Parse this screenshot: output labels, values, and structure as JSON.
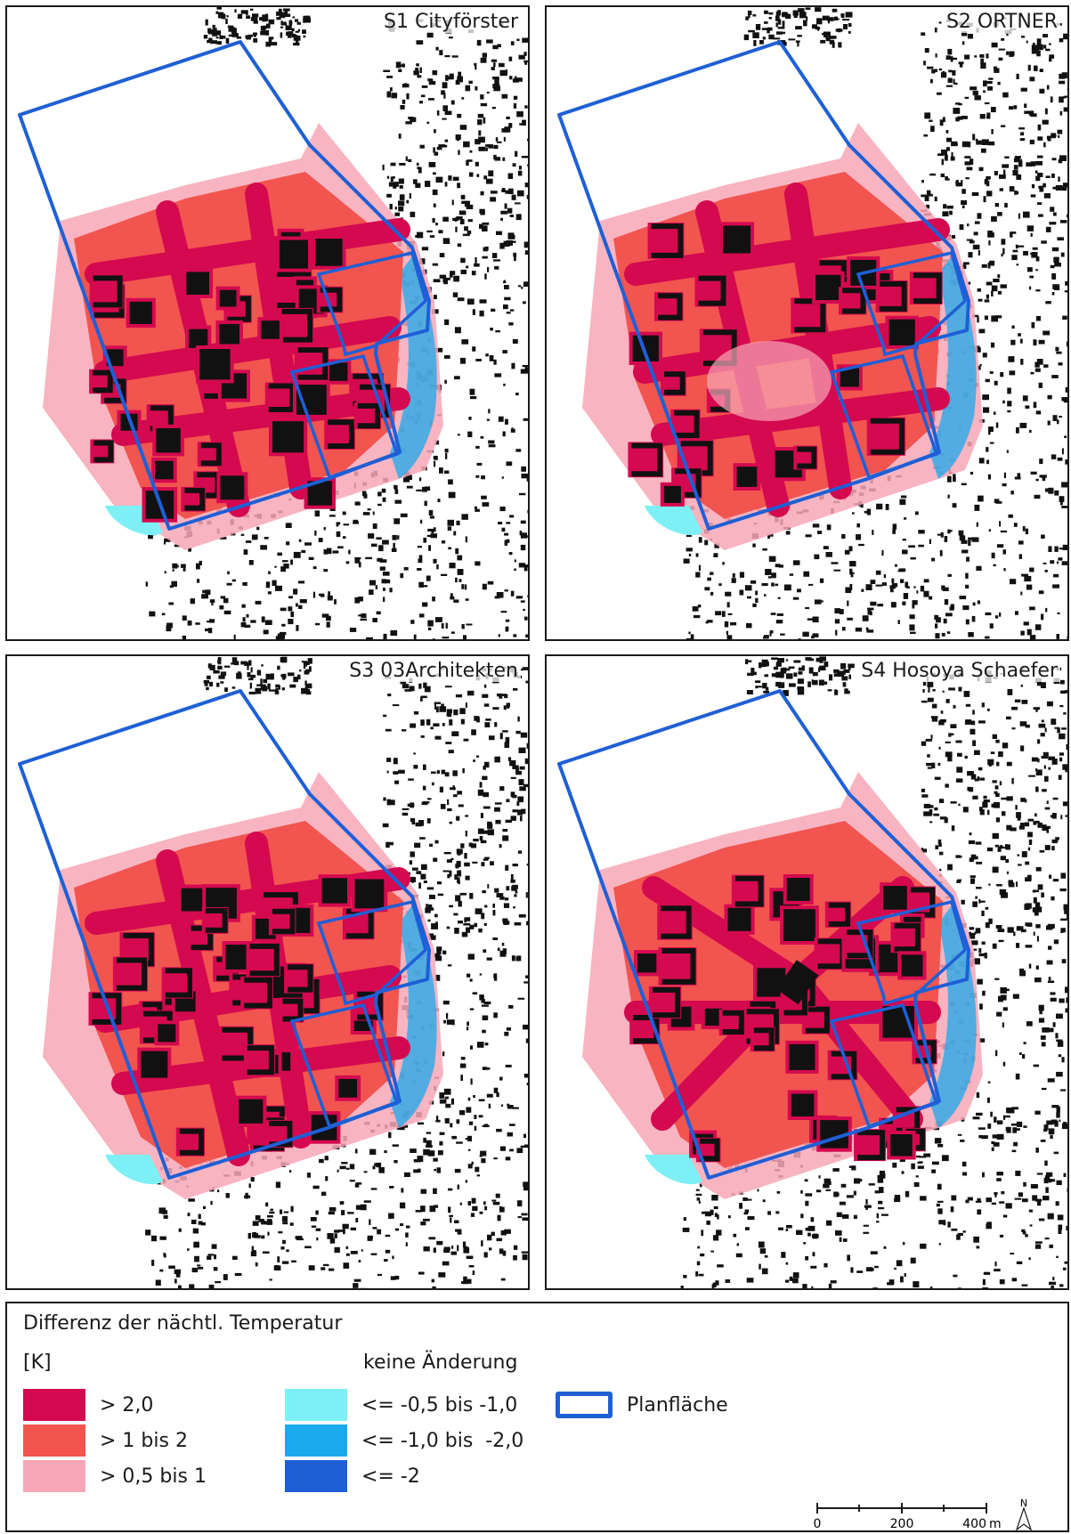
{
  "panels": [
    {
      "id": "p1",
      "label": "S1 Cityförster",
      "variant": 1
    },
    {
      "id": "p2",
      "label": "S2 ORTNER",
      "variant": 2
    },
    {
      "id": "p3",
      "label": "S3 03Architekten",
      "variant": 3
    },
    {
      "id": "p4",
      "label": "S4 Hosoya Schaefer",
      "variant": 4
    }
  ],
  "legend": {
    "title": "Differenz der nächtl. Temperatur",
    "unit": "[K]",
    "no_change_label": "keine Änderung",
    "warm_classes": [
      {
        "label": "> 2,0",
        "color": "#d4094f"
      },
      {
        "label": "> 1 bis 2",
        "color": "#f2544f"
      },
      {
        "label": "> 0,5 bis 1",
        "color": "#f8a7b6"
      }
    ],
    "cool_classes": [
      {
        "label": "<= -0,5 bis -1,0",
        "color": "#7ef0f5"
      },
      {
        "label": "<= -1,0 bis  -2,0",
        "color": "#1aa9ec"
      },
      {
        "label": "<= -2",
        "color": "#1f5fd6"
      }
    ],
    "boundary_label": "Planfläche",
    "boundary_color": "#1f5fd6"
  },
  "scale": {
    "ticks": [
      "0",
      "200",
      "400"
    ],
    "unit": "m",
    "north": "N"
  }
}
